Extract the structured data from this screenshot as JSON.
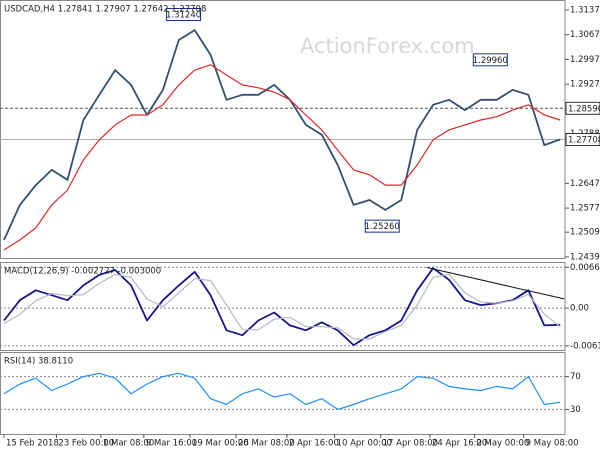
{
  "chart_data": [
    {
      "type": "line",
      "title": "USDCAD,H4  1.27841 1.27907 1.27642 1.27708",
      "watermark": "ActionForex.com",
      "xlim": [
        -0.25,
        35.3
      ],
      "ylim": [
        1.2436,
        1.3165
      ],
      "grid": false,
      "yticks": [
        {
          "value": 1.3137,
          "label": "1.31370"
        },
        {
          "value": 1.3067,
          "label": "1.30670"
        },
        {
          "value": 1.2997,
          "label": "1.29970"
        },
        {
          "value": 1.2927,
          "label": "1.29270"
        },
        {
          "value": 1.2788,
          "label": "1.27880"
        },
        {
          "value": 1.2647,
          "label": "1.26470"
        },
        {
          "value": 1.2577,
          "label": "1.25770"
        },
        {
          "value": 1.2509,
          "label": "1.25090"
        },
        {
          "value": 1.2439,
          "label": "1.24390"
        }
      ],
      "series": [
        {
          "name": "USDCAD",
          "color": "#34506e",
          "values": [
            1.2487,
            1.2586,
            1.2642,
            1.2685,
            1.2657,
            1.2826,
            1.2897,
            1.2967,
            1.2925,
            1.284,
            1.2911,
            1.3052,
            1.308,
            1.301,
            1.2883,
            1.2897,
            1.2897,
            1.2925,
            1.2883,
            1.2812,
            1.2784,
            1.2699,
            1.2586,
            1.26,
            1.2572,
            1.26,
            1.2798,
            1.2869,
            1.2883,
            1.2854,
            1.2883,
            1.2883,
            1.2911,
            1.2897,
            1.2755,
            1.2771
          ]
        },
        {
          "name": "MA",
          "color": "#e02828",
          "values": [
            1.2459,
            1.2487,
            1.2521,
            1.2586,
            1.2628,
            1.2713,
            1.277,
            1.2812,
            1.284,
            1.284,
            1.2869,
            1.2925,
            1.2967,
            1.2982,
            1.2953,
            1.2925,
            1.2917,
            1.2905,
            1.2883,
            1.284,
            1.2798,
            1.2741,
            1.2685,
            1.2671,
            1.2642,
            1.2642,
            1.2699,
            1.277,
            1.2798,
            1.2812,
            1.2826,
            1.2835,
            1.2854,
            1.2869,
            1.284,
            1.2826
          ]
        }
      ],
      "annotations": [
        {
          "text": "1.31240",
          "value": 1.3124,
          "x": 11.3
        },
        {
          "text": "1.29960",
          "value": 1.2996,
          "x": 30.6
        },
        {
          "text": "1.25260",
          "value": 1.2526,
          "x": 23.8
        }
      ],
      "hlines": [
        {
          "value": 1.2859,
          "label": "1.28590",
          "color": "#555555"
        },
        {
          "value": 1.27708,
          "label": "1.27708",
          "color": "#b0b0b0"
        }
      ]
    },
    {
      "type": "line",
      "title": "MACD(12,26,9) -0.002727 -0.003000",
      "xlim": [
        -0.25,
        35.3
      ],
      "ylim": [
        -0.0068,
        0.0075
      ],
      "grid": true,
      "yticks": [
        0.006639,
        {
          "value": 0,
          "label": "0.00"
        },
        -0.006114
      ],
      "series": [
        {
          "name": "MACD",
          "color": "#16168a",
          "values": [
            -0.002,
            0.0013,
            0.0029,
            0.0021,
            0.0013,
            0.0037,
            0.0054,
            0.0062,
            0.0037,
            -0.002,
            0.0013,
            0.0037,
            0.0059,
            0.0021,
            -0.0036,
            -0.0044,
            -0.002,
            -0.0007,
            -0.0028,
            -0.0036,
            -0.0023,
            -0.0036,
            -0.006,
            -0.0044,
            -0.0036,
            -0.002,
            0.0029,
            0.0065,
            0.0046,
            0.0013,
            0.0005,
            0.0008,
            0.0013,
            0.0029,
            -0.0028,
            -0.0027
          ]
        },
        {
          "name": "Signal",
          "color": "#b8b8c8",
          "values": [
            -0.0025,
            -0.001,
            0.0012,
            0.0024,
            0.002,
            0.0022,
            0.004,
            0.0055,
            0.005,
            0.0015,
            0.0002,
            0.0025,
            0.0048,
            0.0045,
            0.0005,
            -0.0035,
            -0.0035,
            -0.0018,
            -0.0015,
            -0.003,
            -0.003,
            -0.0032,
            -0.005,
            -0.005,
            -0.0038,
            -0.0028,
            0.0005,
            0.005,
            0.0055,
            0.0025,
            0.001,
            0.0008,
            0.0012,
            0.0022,
            -0.001,
            -0.003
          ]
        }
      ],
      "trendline": {
        "x": [
          26.6,
          35.25
        ],
        "values": [
          0.0066,
          0.0015
        ]
      }
    },
    {
      "type": "line",
      "title": "RSI(14) 38.8110",
      "xlim": [
        -0.25,
        35.3
      ],
      "ylim": [
        0,
        100
      ],
      "grid": true,
      "yticks": [
        70,
        30
      ],
      "series": [
        {
          "name": "RSI",
          "color": "#1e90ff",
          "values": [
            49,
            61,
            68,
            53,
            61,
            70,
            74,
            68,
            49,
            61,
            70,
            74,
            68,
            43,
            36,
            49,
            55,
            45,
            49,
            36,
            43,
            30,
            36,
            43,
            49,
            55,
            70,
            68,
            58,
            55,
            53,
            58,
            55,
            70,
            36,
            38.81
          ]
        }
      ],
      "xticks": [
        {
          "value": 0,
          "label": "15 Feb 2018"
        },
        {
          "value": 3.3,
          "label": "23 Feb 00:00"
        },
        {
          "value": 6.1,
          "label": "1 Mar 08:00"
        },
        {
          "value": 8.8,
          "label": "9 Mar 16:00"
        },
        {
          "value": 11.7,
          "label": "19 Mar 00:00"
        },
        {
          "value": 14.6,
          "label": "26 Mar 08:00"
        },
        {
          "value": 17.8,
          "label": "2 Apr 16:00"
        },
        {
          "value": 20.8,
          "label": "10 Apr 00:00"
        },
        {
          "value": 23.7,
          "label": "17 Apr 08:00"
        },
        {
          "value": 26.8,
          "label": "24 Apr 16:00"
        },
        {
          "value": 29.6,
          "label": "2 May 00:00"
        },
        {
          "value": 32.7,
          "label": "9 May 08:00"
        }
      ]
    }
  ]
}
